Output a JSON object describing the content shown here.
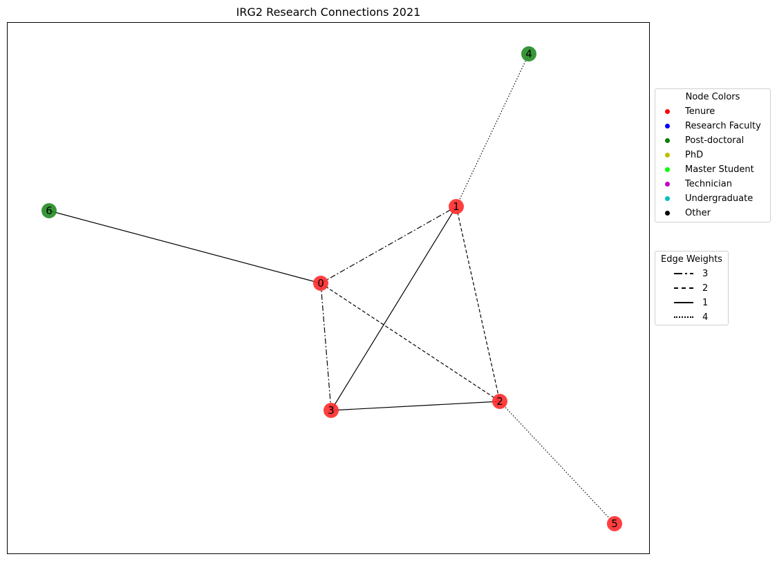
{
  "title": "IRG2 Research Connections 2021",
  "colors": {
    "node_fill": {
      "Tenure": "#ff2a2a",
      "Post-doctoral": "#228b22"
    },
    "edge": "#000000"
  },
  "chart_data": {
    "type": "network",
    "nodes": [
      {
        "id": "0",
        "role": "Tenure"
      },
      {
        "id": "1",
        "role": "Tenure"
      },
      {
        "id": "2",
        "role": "Tenure"
      },
      {
        "id": "3",
        "role": "Tenure"
      },
      {
        "id": "4",
        "role": "Post-doctoral"
      },
      {
        "id": "5",
        "role": "Tenure"
      },
      {
        "id": "6",
        "role": "Post-doctoral"
      }
    ],
    "edges": [
      {
        "source": "0",
        "target": "1",
        "weight": 3
      },
      {
        "source": "0",
        "target": "3",
        "weight": 3
      },
      {
        "source": "0",
        "target": "2",
        "weight": 2
      },
      {
        "source": "0",
        "target": "6",
        "weight": 1
      },
      {
        "source": "1",
        "target": "2",
        "weight": 2
      },
      {
        "source": "1",
        "target": "3",
        "weight": 1
      },
      {
        "source": "1",
        "target": "4",
        "weight": 4
      },
      {
        "source": "2",
        "target": "3",
        "weight": 1
      },
      {
        "source": "2",
        "target": "5",
        "weight": 4
      }
    ]
  },
  "legend_nodes": {
    "title": "Node Colors",
    "items": [
      {
        "label": "Tenure",
        "color": "#ff0000"
      },
      {
        "label": "Research Faculty",
        "color": "#0000ff"
      },
      {
        "label": "Post-doctoral",
        "color": "#008000"
      },
      {
        "label": "PhD",
        "color": "#bfbf00"
      },
      {
        "label": "Master Student",
        "color": "#00ff00"
      },
      {
        "label": "Technician",
        "color": "#bf00bf"
      },
      {
        "label": "Undergraduate",
        "color": "#00bfbf"
      },
      {
        "label": "Other",
        "color": "#000000"
      }
    ]
  },
  "legend_edges": {
    "title": "Edge Weights",
    "items": [
      {
        "label": "3",
        "style": "dashdot"
      },
      {
        "label": "2",
        "style": "dashed"
      },
      {
        "label": "1",
        "style": "solid"
      },
      {
        "label": "4",
        "style": "dotted"
      }
    ]
  }
}
